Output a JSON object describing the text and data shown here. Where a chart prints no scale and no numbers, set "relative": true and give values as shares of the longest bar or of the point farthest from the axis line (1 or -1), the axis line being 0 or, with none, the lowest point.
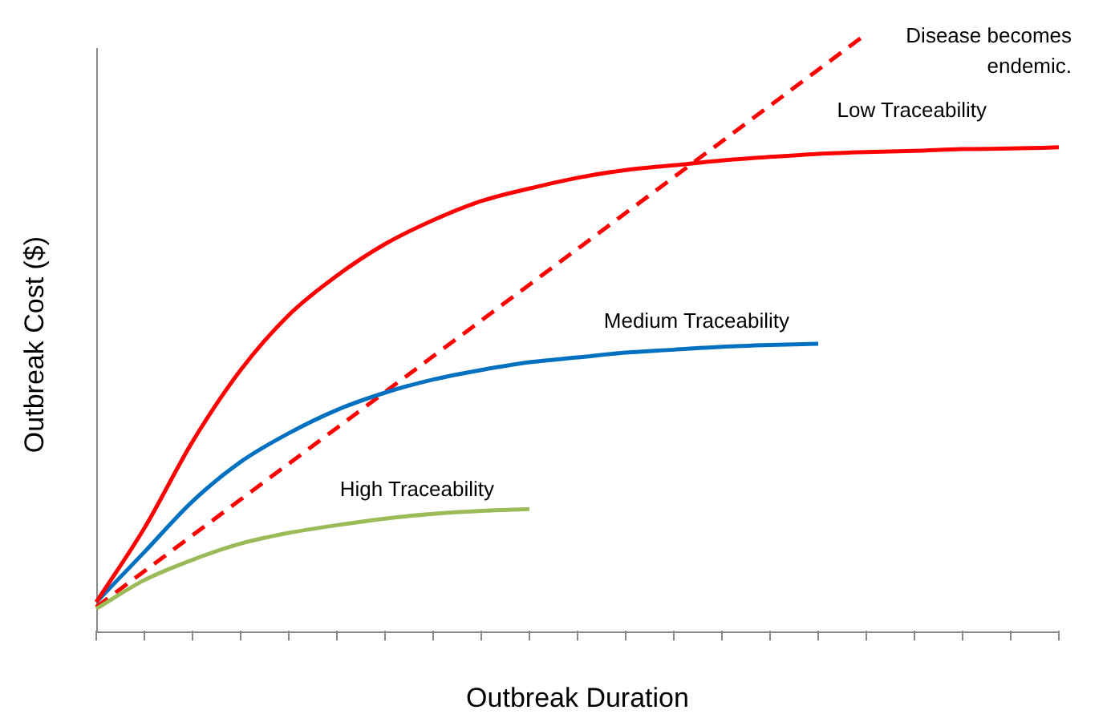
{
  "chart_data": {
    "type": "line",
    "relative": true,
    "xlabel": "Outbreak Duration",
    "ylabel": "Outbreak Cost ($)",
    "legend": false,
    "grid": false,
    "marker": "none",
    "categories": [
      null,
      null,
      null,
      null,
      null,
      null,
      null,
      null,
      null,
      null,
      null,
      null,
      null,
      null,
      null,
      null,
      null,
      null,
      null,
      null,
      null
    ],
    "series": [
      {
        "name": "Low Traceability",
        "color": "#ff0000",
        "line_style": "solid",
        "values": [
          0.048,
          0.172,
          0.317,
          0.437,
          0.529,
          0.595,
          0.648,
          0.688,
          0.72,
          0.741,
          0.759,
          0.772,
          0.78,
          0.788,
          0.794,
          0.799,
          0.802,
          0.804,
          0.807,
          0.808,
          0.81
        ]
      },
      {
        "name": "Medium Traceability",
        "color": "#0070c0",
        "line_style": "solid",
        "values": [
          0.048,
          0.132,
          0.217,
          0.283,
          0.331,
          0.37,
          0.399,
          0.421,
          0.437,
          0.45,
          0.458,
          0.466,
          0.471,
          0.476,
          0.479,
          0.481,
          null,
          null,
          null,
          null,
          null
        ]
      },
      {
        "name": "High Traceability",
        "color": "#9bbb59",
        "line_style": "solid",
        "values": [
          0.037,
          0.085,
          0.119,
          0.146,
          0.164,
          0.177,
          0.188,
          0.196,
          0.201,
          0.204,
          null,
          null,
          null,
          null,
          null,
          null,
          null,
          null,
          null,
          null,
          null
        ]
      },
      {
        "name": "Disease becomes endemic.",
        "color": "#ff0000",
        "line_style": "dashed",
        "values": [
          0.04,
          0.1,
          0.16,
          0.22,
          0.28,
          0.34,
          0.4,
          0.46,
          0.52,
          0.58,
          0.64,
          0.7,
          0.76,
          0.82,
          0.88,
          0.94,
          1,
          null,
          null,
          null,
          null
        ]
      }
    ]
  }
}
